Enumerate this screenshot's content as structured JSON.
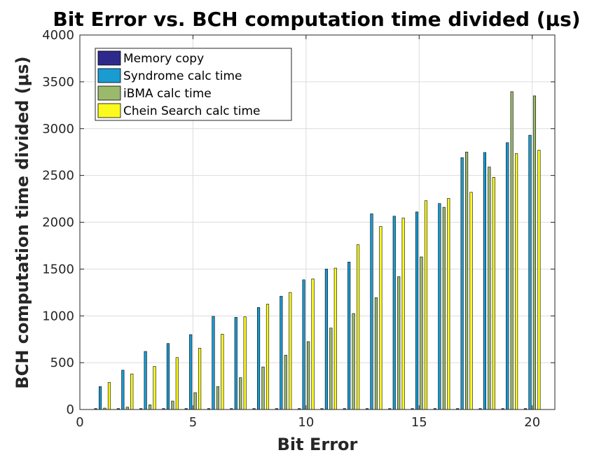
{
  "chart_data": {
    "type": "bar",
    "title": "Bit Error vs. BCH computation time divided (μs)",
    "xlabel": "Bit Error",
    "ylabel": "BCH computation time divided (μs)",
    "xlim": [
      0,
      21
    ],
    "ylim": [
      0,
      4000
    ],
    "xticks": [
      0,
      5,
      10,
      15,
      20
    ],
    "yticks": [
      0,
      500,
      1000,
      1500,
      2000,
      2500,
      3000,
      3500,
      4000
    ],
    "grid": true,
    "legend_position": "top-left",
    "categories": [
      1,
      2,
      3,
      4,
      5,
      6,
      7,
      8,
      9,
      10,
      11,
      12,
      13,
      14,
      15,
      16,
      17,
      18,
      19,
      20
    ],
    "series": [
      {
        "name": "Memory copy",
        "color": "#2e2a8c",
        "values": [
          10,
          10,
          10,
          10,
          10,
          10,
          10,
          10,
          10,
          10,
          10,
          10,
          10,
          10,
          10,
          10,
          10,
          10,
          10,
          10
        ]
      },
      {
        "name": "Syndrome calc time",
        "color": "#1a9bd2",
        "values": [
          245,
          420,
          620,
          705,
          800,
          995,
          985,
          1090,
          1210,
          1385,
          1500,
          1575,
          2090,
          2065,
          2110,
          2200,
          2690,
          2745,
          2850,
          2930
        ]
      },
      {
        "name": "iBMA calc time",
        "color": "#9bb96b",
        "values": [
          15,
          25,
          50,
          90,
          180,
          245,
          340,
          455,
          580,
          725,
          870,
          1025,
          1195,
          1420,
          1630,
          2160,
          2750,
          2590,
          3395,
          3350
        ]
      },
      {
        "name": "Chein Search calc time",
        "color": "#fafa1e",
        "values": [
          290,
          380,
          460,
          555,
          655,
          805,
          990,
          1125,
          1250,
          1395,
          1510,
          1760,
          1955,
          2045,
          2230,
          2255,
          2320,
          2480,
          2735,
          2770
        ]
      }
    ]
  }
}
